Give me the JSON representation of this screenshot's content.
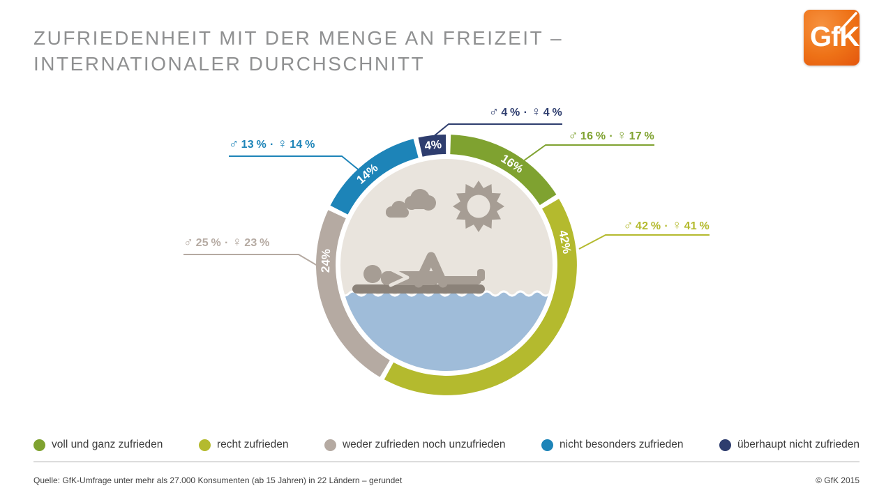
{
  "header": {
    "title_line1": "ZUFRIEDENHEIT MIT DER MENGE AN FREIZEIT –",
    "title_line2": "INTERNATIONALER DURCHSCHNITT",
    "logo_text": "GfK",
    "logo_color": "#ee7217"
  },
  "symbols": {
    "male": "♂",
    "female": "♀",
    "separator": "·"
  },
  "chart_data": {
    "type": "donut",
    "title": "Zufriedenheit mit der Menge an Freizeit – Internationaler Durchschnitt",
    "unit": "percent",
    "start_angle_deg": -13.6,
    "legend_position": "bottom",
    "center_illustration": {
      "background": "#e9e4dd",
      "water": "#9fbcd9",
      "figure": "#a69d94",
      "mat": "#8b8279",
      "scene": [
        "clouds-icon",
        "sun-icon",
        "person-lying-icon",
        "water"
      ]
    },
    "segments": [
      {
        "id": "ueberhaupt-nicht-zufrieden",
        "label": "überhaupt nicht zufrieden",
        "value": 4,
        "ring_label": "4%",
        "male": "4 %",
        "female": "4 %",
        "color": "#2e3d6e"
      },
      {
        "id": "voll-und-ganz-zufrieden",
        "label": "voll und ganz zufrieden",
        "value": 16,
        "ring_label": "16%",
        "male": "16 %",
        "female": "17 %",
        "color": "#7fa230"
      },
      {
        "id": "recht-zufrieden",
        "label": "recht zufrieden",
        "value": 42,
        "ring_label": "42%",
        "male": "42 %",
        "female": "41 %",
        "color": "#b4ba2e"
      },
      {
        "id": "weder-zufrieden-noch-unzufrieden",
        "label": "weder zufrieden noch unzufrieden",
        "value": 24,
        "ring_label": "24%",
        "male": "25 %",
        "female": "23 %",
        "color": "#b5aaa2"
      },
      {
        "id": "nicht-besonders-zufrieden",
        "label": "nicht besonders zufrieden",
        "value": 14,
        "ring_label": "14%",
        "male": "13 %",
        "female": "14 %",
        "color": "#1d84b8"
      }
    ]
  },
  "legend": [
    {
      "label": "voll und ganz zufrieden",
      "color": "#7fa230"
    },
    {
      "label": "recht zufrieden",
      "color": "#b4ba2e"
    },
    {
      "label": "weder zufrieden noch unzufrieden",
      "color": "#b5aaa2"
    },
    {
      "label": "nicht besonders zufrieden",
      "color": "#1d84b8"
    },
    {
      "label": "überhaupt nicht zufrieden",
      "color": "#2e3d6e"
    }
  ],
  "footer": {
    "source": "Quelle: GfK-Umfrage unter mehr als 27.000 Konsumenten (ab 15 Jahren) in 22 Ländern – gerundet",
    "copyright": "© GfK 2015"
  }
}
